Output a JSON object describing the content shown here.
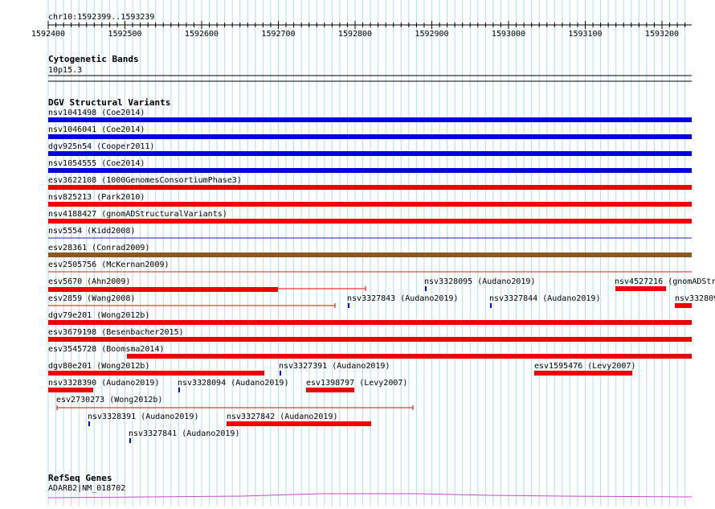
{
  "colors": {
    "blue": "#0000dd",
    "red": "#ee0000",
    "brown": "#8b5a20",
    "grid": "#aee0ee",
    "gene": "#cc44cc",
    "divider_red": "#cc2222",
    "divider_blue": "#2222aa"
  },
  "ruler": {
    "position_label": "chr10:1592399..1593239",
    "ticks": [
      "1592400",
      "1592500",
      "1592600",
      "1592700",
      "1592800",
      "1592900",
      "1593000",
      "1593100",
      "1593200"
    ]
  },
  "cytoband": {
    "title": "Cytogenetic Bands",
    "band": "10p15.3"
  },
  "dgv": {
    "title": "DGV Structural Variants",
    "full_rows": [
      {
        "label": "nsv1041498 (Coe2014)",
        "color": "blue"
      },
      {
        "label": "nsv1046041 (Coe2014)",
        "color": "blue"
      },
      {
        "label": "dgv925n54 (Cooper2011)",
        "color": "blue"
      },
      {
        "label": "nsv1054555 (Coe2014)",
        "color": "blue"
      },
      {
        "label": "esv3622108 (1000GenomesConsortiumPhase3)",
        "color": "red"
      },
      {
        "label": "nsv825213 (Park2010)",
        "color": "red"
      },
      {
        "label": "nsv4188427 (gnomADStructuralVariants)",
        "color": "red"
      },
      {
        "label": "nsv5554 (Kidd2008)",
        "color": "blue"
      },
      {
        "label": "esv28361 (Conrad2009)",
        "color": "brown"
      },
      {
        "label": "esv2505756 (McKernan2009)",
        "color": "red"
      }
    ],
    "features": [
      {
        "label": "esv5670 (Ahn2009)",
        "kind": "gapped",
        "color": "red"
      },
      {
        "label": "nsv3328095 (Audano2019)",
        "kind": "tick",
        "color": "blue"
      },
      {
        "label": "nsv4527216 (gnomADStr",
        "kind": "bar",
        "color": "red"
      },
      {
        "label": "esv2859 (Wang2008)",
        "kind": "line",
        "color": "red"
      },
      {
        "label": "nsv3327843 (Audano2019)",
        "kind": "tick",
        "color": "blue"
      },
      {
        "label": "nsv3327844 (Audano2019)",
        "kind": "tick",
        "color": "blue"
      },
      {
        "label": "nsv332809",
        "kind": "bar",
        "color": "red"
      },
      {
        "label": "dgv79e201 (Wong2012b)",
        "kind": "bar",
        "color": "red"
      },
      {
        "label": "esv3679198 (Besenbacher2015)",
        "kind": "bar",
        "color": "red"
      },
      {
        "label": "esv3545728 (Boomsma2014)",
        "kind": "bar",
        "color": "red"
      },
      {
        "label": "dgv80e201 (Wong2012b)",
        "kind": "bar",
        "color": "red"
      },
      {
        "label": "nsv3327391 (Audano2019)",
        "kind": "tick",
        "color": "blue"
      },
      {
        "label": "esv1595476 (Levy2007)",
        "kind": "bar",
        "color": "red"
      },
      {
        "label": "nsv3328390 (Audano2019)",
        "kind": "bar",
        "color": "red"
      },
      {
        "label": "nsv3328094 (Audano2019)",
        "kind": "tick",
        "color": "blue"
      },
      {
        "label": "esv1398797 (Levy2007)",
        "kind": "bar",
        "color": "red"
      },
      {
        "label": "esv2730273 (Wong2012b)",
        "kind": "line",
        "color": "red"
      },
      {
        "label": "nsv3328391 (Audano2019)",
        "kind": "tick",
        "color": "blue"
      },
      {
        "label": "nsv3327842 (Audano2019)",
        "kind": "bar",
        "color": "red"
      },
      {
        "label": "nsv3327841 (Audano2019)",
        "kind": "tick",
        "color": "blue"
      }
    ]
  },
  "refseq": {
    "title": "RefSeq Genes",
    "gene": "ADARB2|NM_018702"
  }
}
